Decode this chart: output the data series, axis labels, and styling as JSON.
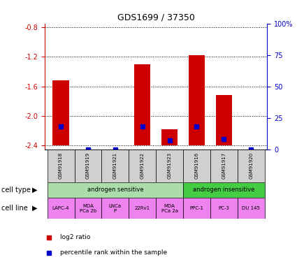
{
  "title": "GDS1699 / 37350",
  "samples": [
    "GSM91918",
    "GSM91919",
    "GSM91921",
    "GSM91922",
    "GSM91923",
    "GSM91916",
    "GSM91917",
    "GSM91920"
  ],
  "log2_ratio": [
    -1.52,
    -2.4,
    -2.4,
    -1.3,
    -2.18,
    -1.18,
    -1.72,
    -2.4
  ],
  "percentile_rank": [
    18,
    0,
    0,
    18,
    7,
    18,
    8,
    0
  ],
  "ylim_left": [
    -2.45,
    -0.75
  ],
  "yticks_left": [
    -2.4,
    -2.0,
    -1.6,
    -1.2,
    -0.8
  ],
  "ylim_right": [
    0,
    100
  ],
  "yticks_right": [
    0,
    25,
    50,
    75,
    100
  ],
  "bar_color": "#cc0000",
  "percentile_color": "#0000cc",
  "cell_type_row": {
    "androgen sensitive": [
      0,
      5
    ],
    "androgen insensitive": [
      5,
      8
    ]
  },
  "cell_type_colors": {
    "androgen sensitive": "#aaddaa",
    "androgen insensitive": "#44cc44"
  },
  "cell_line_labels": [
    "LAPC-4",
    "MDA\nPCa 2b",
    "LNCa\nP",
    "22Rv1",
    "MDA\nPCa 2a",
    "PPC-1",
    "PC-3",
    "DU 145"
  ],
  "cell_line_color": "#ee82ee",
  "background_color": "#ffffff",
  "left_axis_color": "#cc0000",
  "right_axis_color": "#0000cc",
  "bar_bottom": -2.4,
  "bar_width": 0.6
}
